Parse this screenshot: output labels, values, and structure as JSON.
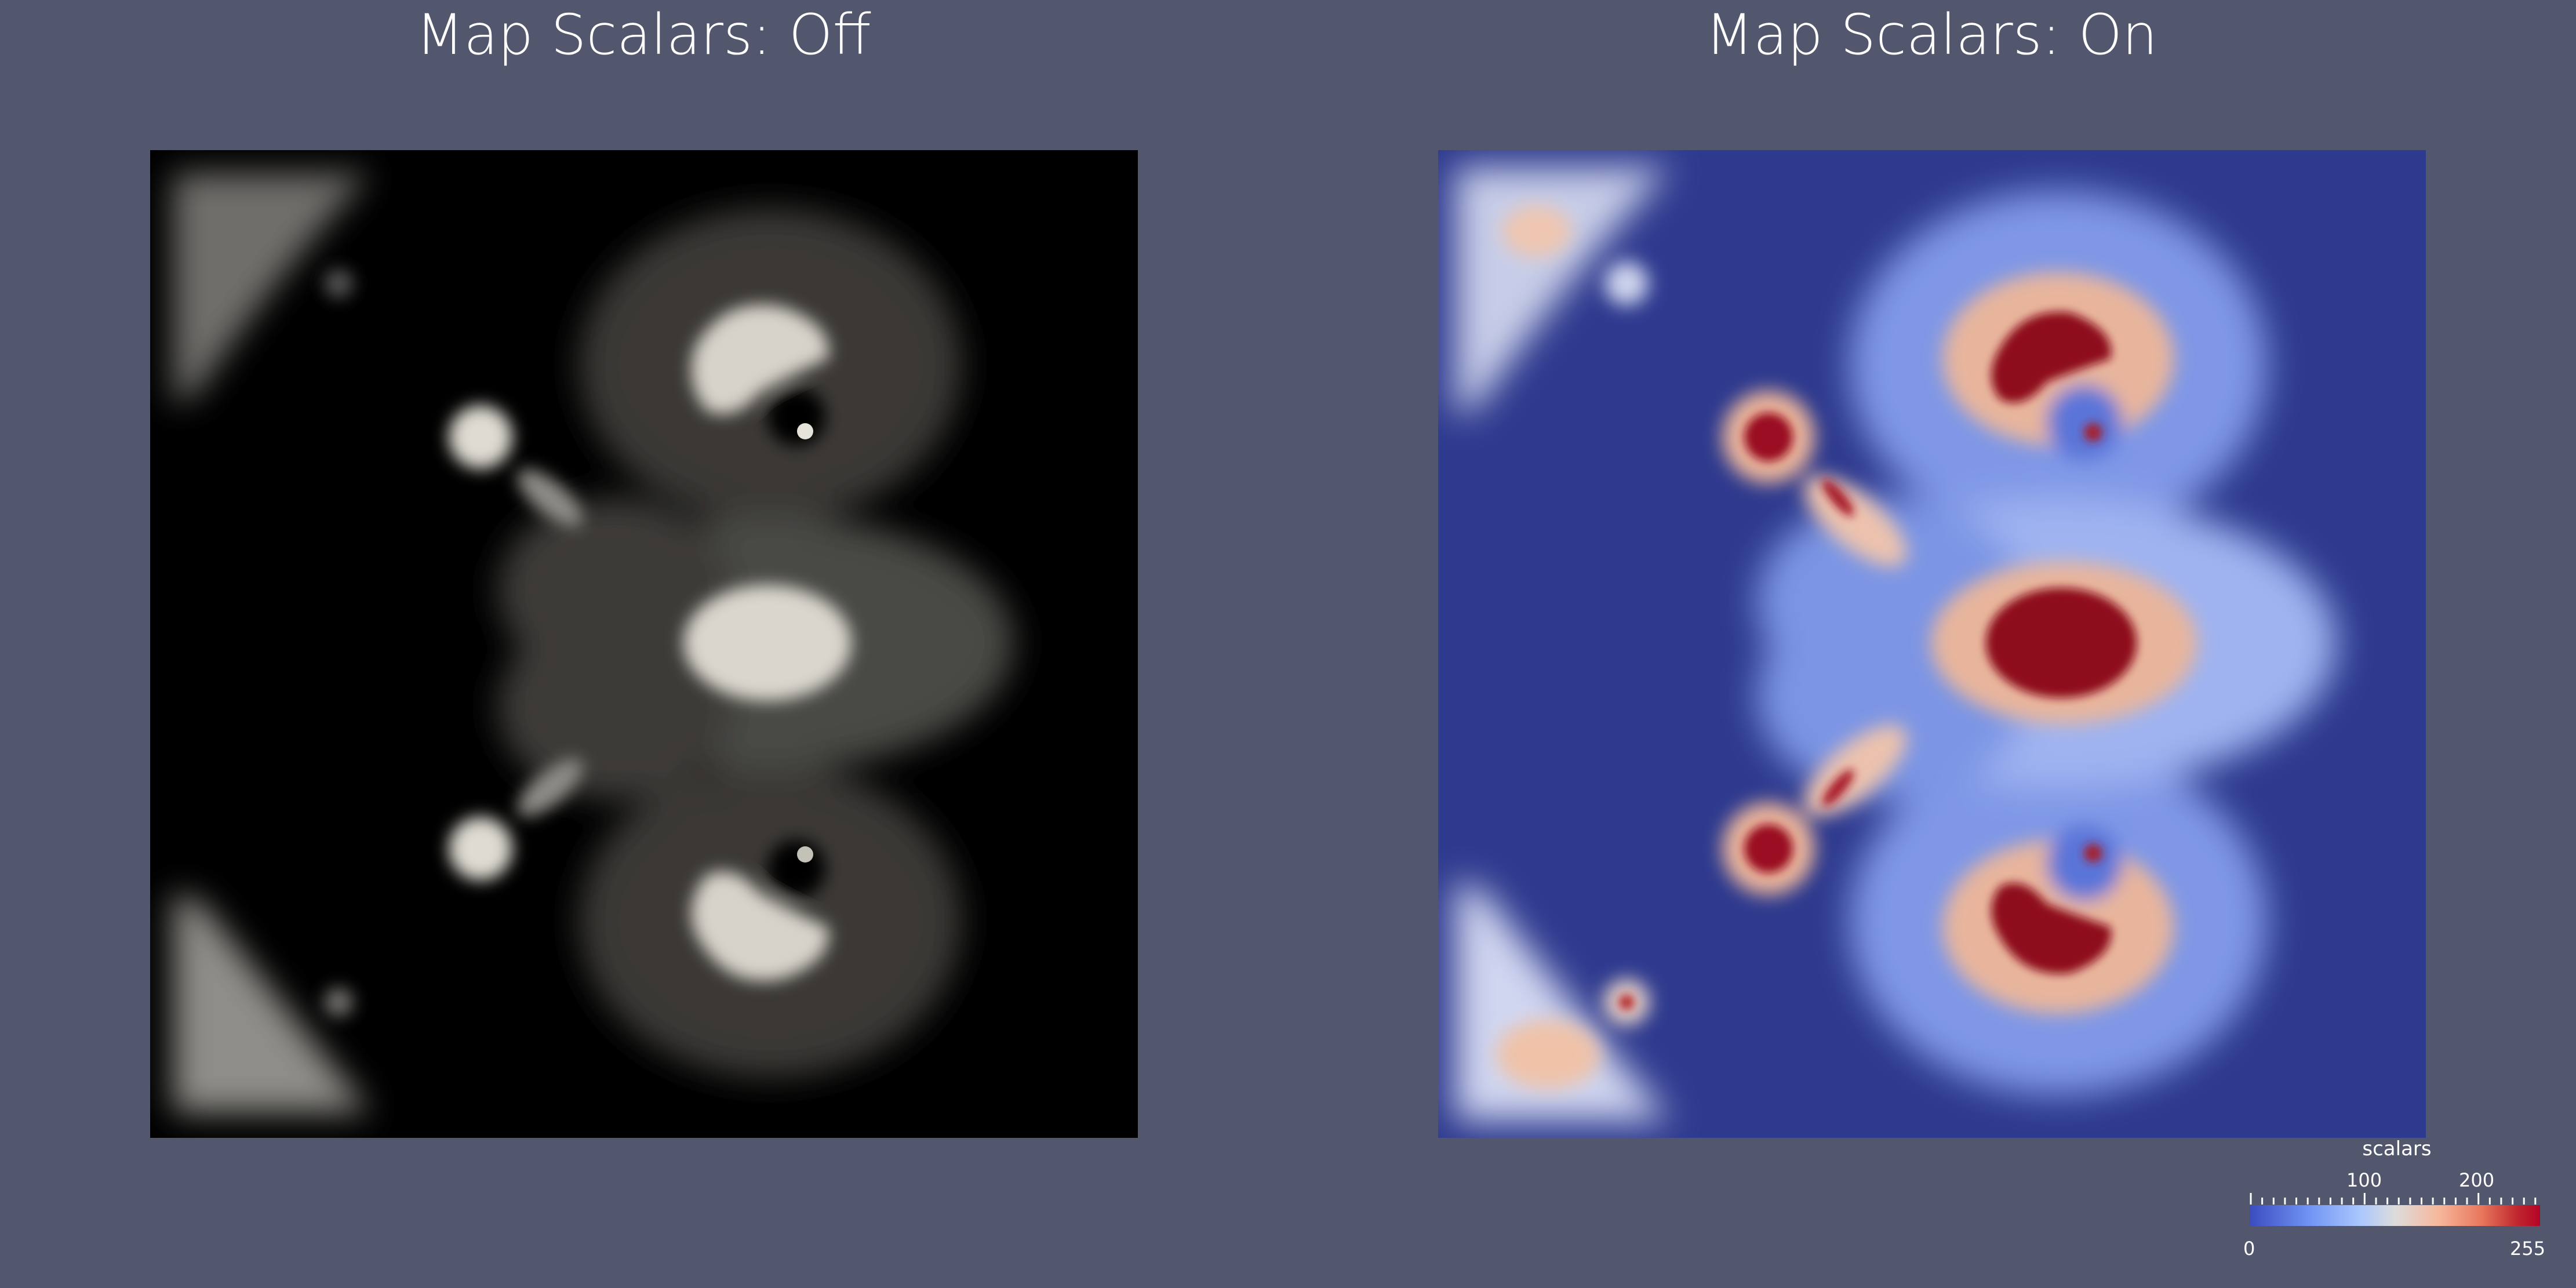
{
  "left_title": "Map Scalars: Off",
  "right_title": "Map Scalars: On",
  "scalar_bar": {
    "title": "scalars",
    "labels": {
      "min": "0",
      "tick1": "100",
      "tick2": "200",
      "max": "255"
    },
    "colormap": "cool-to-warm",
    "range": [
      0,
      255
    ]
  },
  "colors": {
    "background": "#52576e",
    "left_base": "#000000",
    "left_high": "#e6e3da",
    "right_base": "#2e3a8e",
    "right_high": "#8e0a1e"
  }
}
